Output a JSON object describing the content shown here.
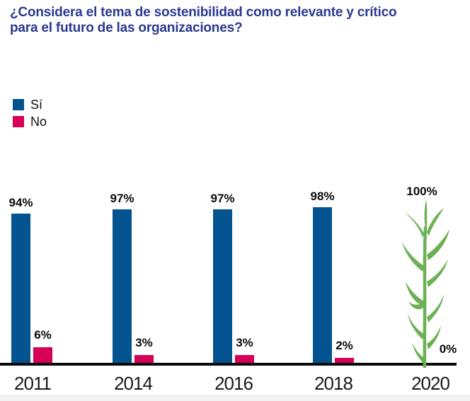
{
  "title_lines": [
    "¿Considera el tema de sostenibilidad como relevante y crítico",
    "para el futuro de las organizaciones?"
  ],
  "legend": {
    "si": "Sí",
    "no": "No"
  },
  "colors": {
    "si_bar": "#02538F",
    "no_bar": "#D60057",
    "title_text": "#2B3990",
    "plant_green": "#6CB154",
    "axis_line": "#0a0a0a",
    "bottom_strip": "#F2F2F2"
  },
  "chart_data": {
    "type": "bar",
    "title": "¿Considera el tema de sostenibilidad como relevante y crítico para el futuro de las organizaciones?",
    "categories": [
      "2011",
      "2014",
      "2016",
      "2018",
      "2020"
    ],
    "series": [
      {
        "name": "Sí",
        "color": "#02538F",
        "values": [
          94,
          97,
          97,
          98,
          100
        ],
        "labels": [
          "94%",
          "97%",
          "97%",
          "98%",
          "100%"
        ]
      },
      {
        "name": "No",
        "color": "#D60057",
        "values": [
          6,
          3,
          3,
          2,
          0
        ],
        "labels": [
          "6%",
          "3%",
          "3%",
          "2%",
          "0%"
        ]
      }
    ],
    "ylim": [
      0,
      100
    ],
    "grid": false,
    "legend_position": "upper-left",
    "annotations": [
      "2020 category shown as a growing plant illustration instead of bars, with 100% at top and 0% at base"
    ]
  }
}
